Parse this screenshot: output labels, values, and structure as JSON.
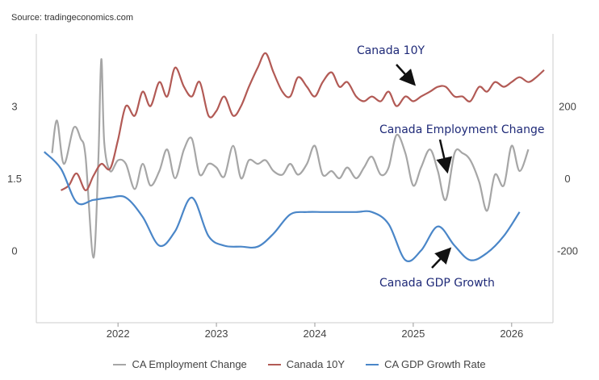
{
  "source": "Source: tradingeconomics.com",
  "chart_data": {
    "type": "line",
    "title": "",
    "grid": false,
    "legend_position": "bottom",
    "x_ticks": [
      "2022",
      "2023",
      "2024",
      "2025",
      "2026"
    ],
    "y_left": {
      "ticks": [
        "0",
        "1.5",
        "3"
      ],
      "range": [
        -1.5,
        4.5
      ]
    },
    "y_right": {
      "ticks": [
        "-200",
        "0",
        "200"
      ],
      "range": [
        -400,
        400
      ]
    },
    "series": [
      {
        "name": "CA Employment Change",
        "color": "#a6a6a6",
        "axis": "right",
        "points": [
          [
            2021.33,
            70
          ],
          [
            2021.38,
            160
          ],
          [
            2021.45,
            40
          ],
          [
            2021.55,
            140
          ],
          [
            2021.62,
            110
          ],
          [
            2021.67,
            60
          ],
          [
            2021.75,
            -220
          ],
          [
            2021.8,
            50
          ],
          [
            2021.83,
            330
          ],
          [
            2021.86,
            100
          ],
          [
            2021.92,
            20
          ],
          [
            2022.0,
            50
          ],
          [
            2022.08,
            40
          ],
          [
            2022.17,
            -30
          ],
          [
            2022.25,
            40
          ],
          [
            2022.33,
            -20
          ],
          [
            2022.42,
            20
          ],
          [
            2022.5,
            80
          ],
          [
            2022.58,
            0
          ],
          [
            2022.67,
            80
          ],
          [
            2022.75,
            110
          ],
          [
            2022.83,
            10
          ],
          [
            2022.92,
            40
          ],
          [
            2023.0,
            30
          ],
          [
            2023.08,
            5
          ],
          [
            2023.17,
            90
          ],
          [
            2023.25,
            0
          ],
          [
            2023.33,
            50
          ],
          [
            2023.42,
            40
          ],
          [
            2023.5,
            50
          ],
          [
            2023.58,
            20
          ],
          [
            2023.67,
            10
          ],
          [
            2023.75,
            40
          ],
          [
            2023.83,
            10
          ],
          [
            2023.92,
            40
          ],
          [
            2024.0,
            90
          ],
          [
            2024.08,
            10
          ],
          [
            2024.17,
            20
          ],
          [
            2024.25,
            0
          ],
          [
            2024.33,
            30
          ],
          [
            2024.42,
            0
          ],
          [
            2024.5,
            30
          ],
          [
            2024.58,
            60
          ],
          [
            2024.67,
            10
          ],
          [
            2024.75,
            30
          ],
          [
            2024.83,
            120
          ],
          [
            2024.92,
            70
          ],
          [
            2025.0,
            -20
          ],
          [
            2025.08,
            30
          ],
          [
            2025.17,
            80
          ],
          [
            2025.25,
            20
          ],
          [
            2025.33,
            -60
          ],
          [
            2025.42,
            70
          ],
          [
            2025.5,
            70
          ],
          [
            2025.58,
            50
          ],
          [
            2025.67,
            -10
          ],
          [
            2025.75,
            -90
          ],
          [
            2025.83,
            10
          ],
          [
            2025.92,
            -20
          ],
          [
            2026.0,
            90
          ],
          [
            2026.08,
            20
          ],
          [
            2026.17,
            80
          ]
        ]
      },
      {
        "name": "Canada 10Y",
        "color": "#b25a55",
        "axis": "left",
        "points": [
          [
            2021.42,
            1.25
          ],
          [
            2021.5,
            1.35
          ],
          [
            2021.58,
            1.6
          ],
          [
            2021.67,
            1.25
          ],
          [
            2021.75,
            1.55
          ],
          [
            2021.83,
            1.8
          ],
          [
            2021.92,
            1.7
          ],
          [
            2022.0,
            2.3
          ],
          [
            2022.08,
            3.0
          ],
          [
            2022.17,
            2.8
          ],
          [
            2022.25,
            3.3
          ],
          [
            2022.33,
            3.0
          ],
          [
            2022.42,
            3.5
          ],
          [
            2022.5,
            3.2
          ],
          [
            2022.58,
            3.8
          ],
          [
            2022.67,
            3.4
          ],
          [
            2022.75,
            3.2
          ],
          [
            2022.83,
            3.5
          ],
          [
            2022.92,
            2.8
          ],
          [
            2023.0,
            2.9
          ],
          [
            2023.08,
            3.2
          ],
          [
            2023.17,
            2.8
          ],
          [
            2023.25,
            3.0
          ],
          [
            2023.33,
            3.4
          ],
          [
            2023.42,
            3.8
          ],
          [
            2023.5,
            4.1
          ],
          [
            2023.58,
            3.7
          ],
          [
            2023.67,
            3.3
          ],
          [
            2023.75,
            3.2
          ],
          [
            2023.83,
            3.6
          ],
          [
            2023.92,
            3.4
          ],
          [
            2024.0,
            3.2
          ],
          [
            2024.08,
            3.5
          ],
          [
            2024.17,
            3.7
          ],
          [
            2024.25,
            3.4
          ],
          [
            2024.33,
            3.5
          ],
          [
            2024.42,
            3.2
          ],
          [
            2024.5,
            3.1
          ],
          [
            2024.58,
            3.2
          ],
          [
            2024.67,
            3.1
          ],
          [
            2024.75,
            3.3
          ],
          [
            2024.83,
            3.0
          ],
          [
            2024.92,
            3.2
          ],
          [
            2025.0,
            3.1
          ],
          [
            2025.08,
            3.2
          ],
          [
            2025.17,
            3.3
          ],
          [
            2025.25,
            3.4
          ],
          [
            2025.33,
            3.4
          ],
          [
            2025.42,
            3.2
          ],
          [
            2025.5,
            3.2
          ],
          [
            2025.58,
            3.1
          ],
          [
            2025.67,
            3.4
          ],
          [
            2025.75,
            3.3
          ],
          [
            2025.83,
            3.5
          ],
          [
            2025.92,
            3.4
          ],
          [
            2026.0,
            3.5
          ],
          [
            2026.08,
            3.6
          ],
          [
            2026.17,
            3.5
          ],
          [
            2026.25,
            3.6
          ],
          [
            2026.33,
            3.75
          ]
        ]
      },
      {
        "name": "CA GDP Growth Rate",
        "color": "#4a86c8",
        "axis": "left",
        "points": [
          [
            2021.25,
            2.05
          ],
          [
            2021.42,
            1.7
          ],
          [
            2021.58,
            1.0
          ],
          [
            2021.75,
            1.05
          ],
          [
            2021.92,
            1.1
          ],
          [
            2022.08,
            1.1
          ],
          [
            2022.25,
            0.7
          ],
          [
            2022.42,
            0.1
          ],
          [
            2022.58,
            0.4
          ],
          [
            2022.75,
            1.1
          ],
          [
            2022.92,
            0.3
          ],
          [
            2023.08,
            0.1
          ],
          [
            2023.25,
            0.08
          ],
          [
            2023.42,
            0.08
          ],
          [
            2023.58,
            0.35
          ],
          [
            2023.75,
            0.75
          ],
          [
            2023.92,
            0.8
          ],
          [
            2024.08,
            0.8
          ],
          [
            2024.25,
            0.8
          ],
          [
            2024.42,
            0.8
          ],
          [
            2024.58,
            0.8
          ],
          [
            2024.75,
            0.55
          ],
          [
            2024.92,
            -0.2
          ],
          [
            2025.08,
            0.0
          ],
          [
            2025.25,
            0.5
          ],
          [
            2025.42,
            0.1
          ],
          [
            2025.58,
            -0.2
          ],
          [
            2025.75,
            -0.05
          ],
          [
            2025.92,
            0.3
          ],
          [
            2026.08,
            0.8
          ]
        ]
      }
    ],
    "annotations": [
      {
        "text": "Canada 10Y",
        "series": "Canada 10Y"
      },
      {
        "text": "Canada Employment Change",
        "series": "CA Employment Change"
      },
      {
        "text": "Canada GDP Growth",
        "series": "CA GDP Growth Rate"
      }
    ]
  }
}
